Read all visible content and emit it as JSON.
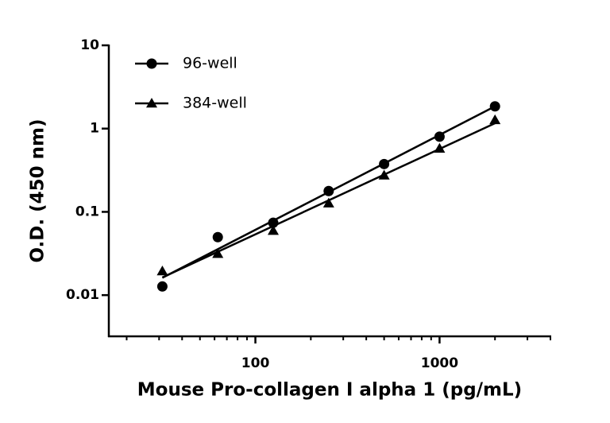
{
  "chart_data": {
    "type": "scatter",
    "x_label": "Mouse Pro-collagen I alpha 1 (pg/mL)",
    "y_label": "O.D. (450 nm)",
    "x": [
      31.25,
      62.5,
      125,
      250,
      500,
      1000,
      2000
    ],
    "series": [
      {
        "name": "96-well",
        "color": "#000000",
        "marker": "circle",
        "values": [
          0.0127,
          0.0497,
          0.074,
          0.178,
          0.375,
          0.8,
          1.85
        ]
      },
      {
        "name": "384-well",
        "color": "#000000",
        "marker": "triangle",
        "values": [
          0.0194,
          0.0314,
          0.0594,
          0.127,
          0.275,
          0.577,
          1.27
        ]
      }
    ],
    "xscale": "log",
    "yscale": "log",
    "fit_lines": true,
    "xlim": [
      16,
      4000
    ],
    "xticks": [
      100,
      1000
    ],
    "xminorticks": [
      20,
      30,
      40,
      50,
      60,
      70,
      80,
      90,
      200,
      300,
      400,
      500,
      600,
      700,
      800,
      900,
      2000,
      3000,
      4000
    ],
    "ylim": [
      0.0032,
      10
    ],
    "yticks": [
      0.01,
      0.1,
      1,
      10
    ],
    "legend": "upper left"
  }
}
